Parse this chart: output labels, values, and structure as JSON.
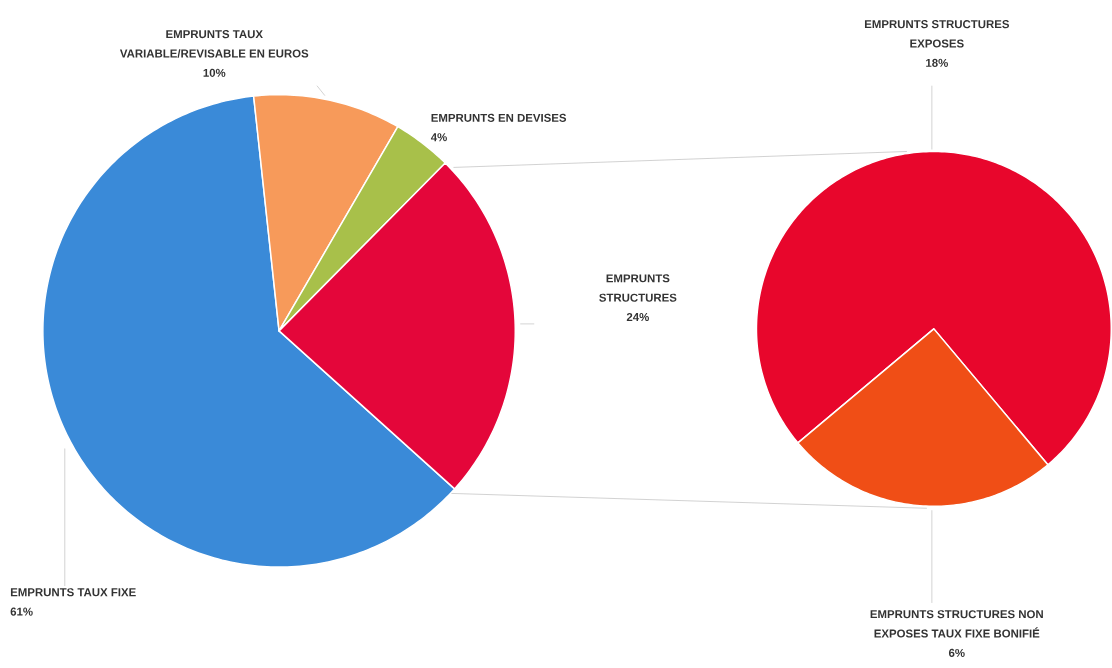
{
  "chart_data": [
    {
      "type": "pie",
      "categories": [
        "EMPRUNTS TAUX FIXE",
        "EMPRUNTS TAUX VARIABLE/REVISABLE EN EUROS",
        "EMPRUNTS EN DEVISES",
        "EMPRUNTS STRUCTURES"
      ],
      "values": [
        61,
        10,
        4,
        24
      ],
      "colors": [
        "#3a8ad8",
        "#f79a5a",
        "#a8c04a",
        "#e4063a"
      ],
      "value_labels": [
        "61%",
        "10%",
        "4%",
        "24%"
      ]
    },
    {
      "type": "pie",
      "categories": [
        "EMPRUNTS STRUCTURES EXPOSES",
        "EMPRUNTS STRUCTURES NON EXPOSES TAUX FIXE BONIFIÉ"
      ],
      "values": [
        18,
        6
      ],
      "colors": [
        "#e8062c",
        "#f04e16"
      ],
      "value_labels": [
        "18%",
        "6%"
      ]
    }
  ]
}
